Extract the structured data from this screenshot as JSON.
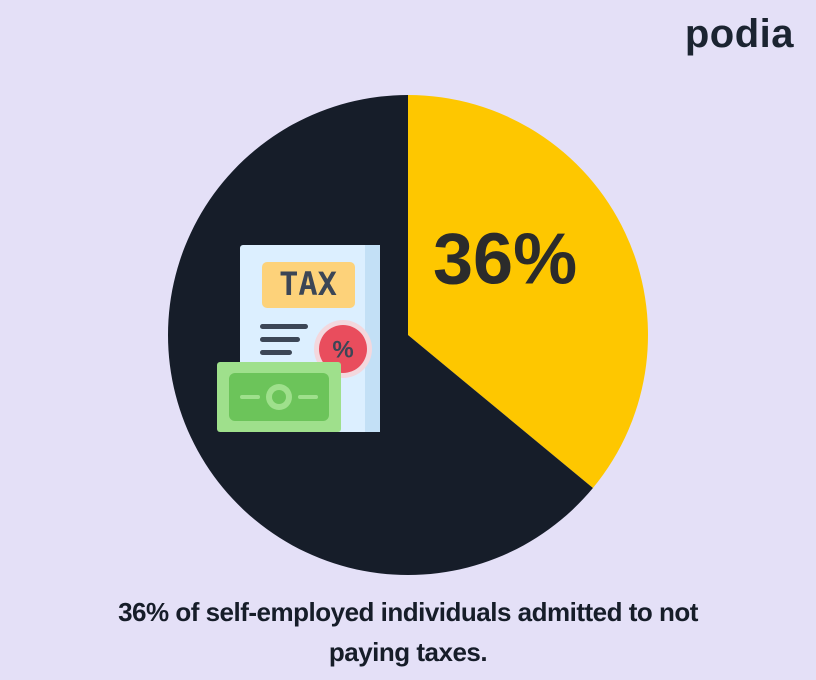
{
  "brand": "podia",
  "icon": {
    "label": "TAX",
    "badge": "%"
  },
  "chart_data": {
    "type": "pie",
    "categories": [
      null,
      null
    ],
    "values": [
      36,
      64
    ],
    "value_labels": [
      "36%",
      null
    ],
    "colors": [
      "#fec700",
      "#161d29"
    ],
    "caption": "36% of self-employed individuals admitted to not paying taxes."
  }
}
